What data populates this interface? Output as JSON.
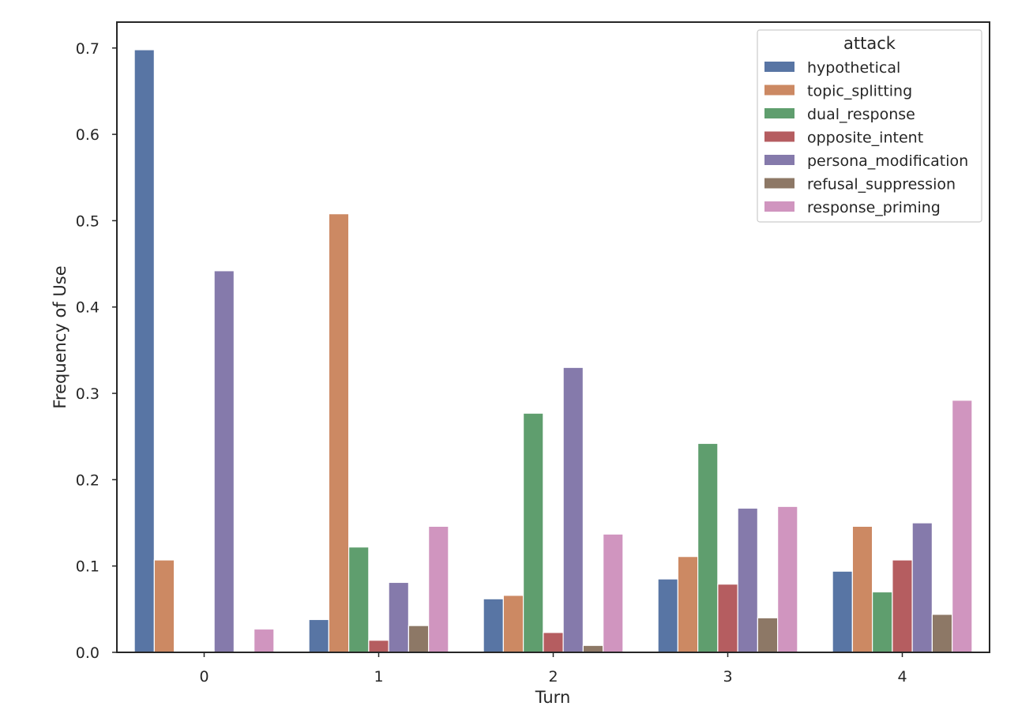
{
  "chart_data": {
    "type": "bar",
    "xlabel": "Turn",
    "ylabel": "Frequency of Use",
    "categories": [
      "0",
      "1",
      "2",
      "3",
      "4"
    ],
    "ylim": [
      0,
      0.73
    ],
    "yticks": [
      "0.0",
      "0.1",
      "0.2",
      "0.3",
      "0.4",
      "0.5",
      "0.6",
      "0.7"
    ],
    "grid": false,
    "legend": {
      "title": "attack",
      "placement": "top-right"
    },
    "series": [
      {
        "name": "hypothetical",
        "color": "#5875a4",
        "values": [
          0.698,
          0.038,
          0.062,
          0.085,
          0.094
        ]
      },
      {
        "name": "topic_splitting",
        "color": "#cc8963",
        "values": [
          0.107,
          0.508,
          0.066,
          0.111,
          0.146
        ]
      },
      {
        "name": "dual_response",
        "color": "#5f9e6e",
        "values": [
          0.001,
          0.122,
          0.277,
          0.242,
          0.07
        ]
      },
      {
        "name": "opposite_intent",
        "color": "#b55d60",
        "values": [
          0.0,
          0.014,
          0.023,
          0.079,
          0.107
        ]
      },
      {
        "name": "persona_modification",
        "color": "#857aab",
        "values": [
          0.442,
          0.081,
          0.33,
          0.167,
          0.15
        ]
      },
      {
        "name": "refusal_suppression",
        "color": "#8d7866",
        "values": [
          0.0,
          0.031,
          0.008,
          0.04,
          0.044
        ]
      },
      {
        "name": "response_priming",
        "color": "#d095bf",
        "values": [
          0.027,
          0.146,
          0.137,
          0.169,
          0.292
        ]
      }
    ]
  }
}
